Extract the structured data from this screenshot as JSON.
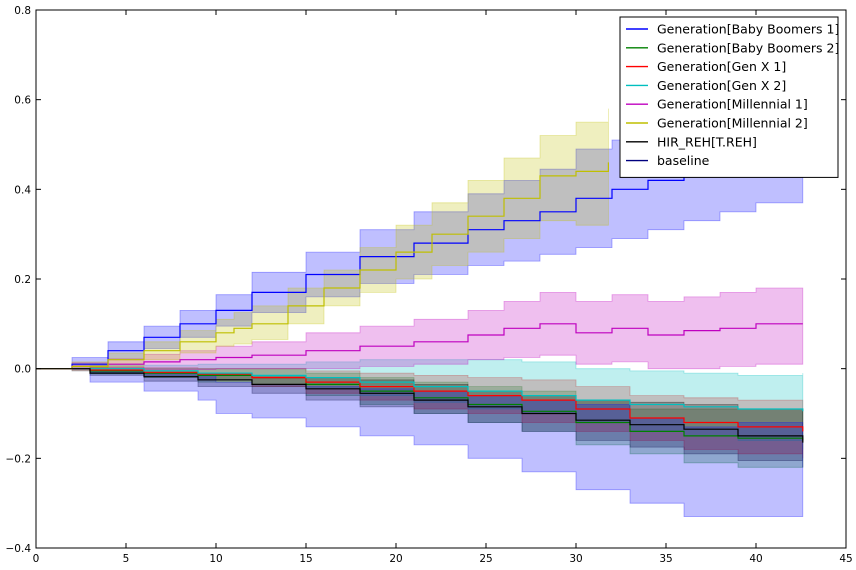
{
  "chart_data": {
    "type": "line",
    "title": "",
    "xlabel": "",
    "ylabel": "",
    "xlim": [
      0,
      45
    ],
    "ylim": [
      -0.4,
      0.8
    ],
    "xticks": [
      0,
      5,
      10,
      15,
      20,
      25,
      30,
      35,
      40,
      45
    ],
    "yticks": [
      -0.4,
      -0.2,
      0.0,
      0.2,
      0.4,
      0.6,
      0.8
    ],
    "xtick_labels": [
      "0",
      "5",
      "10",
      "15",
      "20",
      "25",
      "30",
      "35",
      "40",
      "45"
    ],
    "ytick_labels": [
      "−0.4",
      "−0.2",
      "0.0",
      "0.2",
      "0.4",
      "0.6",
      "0.8"
    ],
    "grid": false,
    "legend_position": "top-right",
    "series": [
      {
        "name": "Generation[Baby Boomers 1]",
        "color": "#0000ff",
        "x": [
          0,
          2,
          4,
          6,
          8,
          10,
          12,
          15,
          18,
          21,
          24,
          26,
          28,
          30,
          32,
          34,
          36,
          38,
          40,
          42.6
        ],
        "y": [
          0,
          0.01,
          0.04,
          0.07,
          0.1,
          0.13,
          0.17,
          0.21,
          0.25,
          0.28,
          0.31,
          0.33,
          0.35,
          0.38,
          0.4,
          0.42,
          0.44,
          0.45,
          0.46,
          0.48
        ],
        "lower": [
          0,
          -0.005,
          0.02,
          0.045,
          0.07,
          0.095,
          0.125,
          0.16,
          0.19,
          0.21,
          0.23,
          0.24,
          0.255,
          0.27,
          0.29,
          0.31,
          0.33,
          0.35,
          0.37,
          0.4
        ],
        "upper": [
          0,
          0.025,
          0.06,
          0.095,
          0.13,
          0.165,
          0.215,
          0.26,
          0.31,
          0.35,
          0.39,
          0.42,
          0.445,
          0.49,
          0.51,
          0.53,
          0.55,
          0.56,
          0.57,
          0.58
        ]
      },
      {
        "name": "Generation[Baby Boomers 2]",
        "color": "#008000",
        "x": [
          0,
          3,
          6,
          9,
          12,
          15,
          18,
          21,
          24,
          27,
          30,
          33,
          36,
          39,
          42.6
        ],
        "y": [
          0,
          -0.005,
          -0.01,
          -0.015,
          -0.02,
          -0.035,
          -0.05,
          -0.065,
          -0.08,
          -0.095,
          -0.12,
          -0.14,
          -0.15,
          -0.155,
          -0.16
        ],
        "lower": [
          0,
          -0.012,
          -0.02,
          -0.03,
          -0.04,
          -0.06,
          -0.08,
          -0.1,
          -0.12,
          -0.14,
          -0.17,
          -0.19,
          -0.21,
          -0.22,
          -0.22
        ],
        "upper": [
          0,
          0.002,
          0.0,
          0.0,
          0.0,
          -0.01,
          -0.02,
          -0.03,
          -0.04,
          -0.05,
          -0.07,
          -0.09,
          -0.09,
          -0.09,
          -0.1
        ]
      },
      {
        "name": "Generation[Gen X 1]",
        "color": "#ff0000",
        "x": [
          0,
          3,
          6,
          9,
          12,
          15,
          18,
          21,
          24,
          27,
          30,
          33,
          36,
          39,
          42.6
        ],
        "y": [
          0,
          -0.003,
          -0.008,
          -0.012,
          -0.02,
          -0.03,
          -0.04,
          -0.05,
          -0.06,
          -0.07,
          -0.09,
          -0.11,
          -0.12,
          -0.13,
          -0.14
        ],
        "lower": [
          0,
          -0.01,
          -0.018,
          -0.025,
          -0.04,
          -0.055,
          -0.07,
          -0.09,
          -0.1,
          -0.12,
          -0.14,
          -0.16,
          -0.18,
          -0.19,
          -0.2
        ],
        "upper": [
          0,
          0.004,
          0.002,
          0.0,
          0.0,
          -0.005,
          -0.01,
          -0.015,
          -0.02,
          -0.025,
          -0.04,
          -0.06,
          -0.065,
          -0.07,
          -0.08
        ]
      },
      {
        "name": "Generation[Gen X 2]",
        "color": "#00bfbf",
        "x": [
          0,
          3,
          6,
          9,
          12,
          15,
          18,
          21,
          24,
          27,
          30,
          33,
          36,
          39,
          42.6
        ],
        "y": [
          0,
          0.0,
          -0.005,
          -0.01,
          -0.015,
          -0.02,
          -0.03,
          -0.04,
          -0.05,
          -0.06,
          -0.07,
          -0.08,
          -0.085,
          -0.09,
          -0.095
        ],
        "lower": [
          0,
          -0.008,
          -0.015,
          -0.025,
          -0.035,
          -0.045,
          -0.06,
          -0.075,
          -0.09,
          -0.1,
          -0.12,
          -0.14,
          -0.15,
          -0.16,
          -0.18
        ],
        "upper": [
          0,
          0.008,
          0.008,
          0.01,
          0.01,
          0.015,
          0.02,
          0.02,
          0.02,
          0.015,
          0.0,
          -0.005,
          -0.01,
          -0.015,
          -0.01
        ]
      },
      {
        "name": "Generation[Millennial 1]",
        "color": "#bf00bf",
        "x": [
          0,
          2,
          4,
          6,
          8,
          10,
          12,
          15,
          18,
          21,
          24,
          26,
          28,
          30,
          32,
          34,
          36,
          38,
          40,
          42.6
        ],
        "y": [
          0,
          0.005,
          0.01,
          0.015,
          0.02,
          0.025,
          0.03,
          0.04,
          0.05,
          0.06,
          0.075,
          0.09,
          0.1,
          0.08,
          0.09,
          0.075,
          0.085,
          0.09,
          0.1,
          0.1
        ],
        "lower": [
          0,
          -0.003,
          -0.003,
          -0.003,
          -0.002,
          0.0,
          0.0,
          0.0,
          0.005,
          0.01,
          0.02,
          0.025,
          0.03,
          0.01,
          0.015,
          0.0,
          0.0,
          0.005,
          0.01,
          0.02
        ],
        "upper": [
          0,
          0.013,
          0.022,
          0.032,
          0.04,
          0.05,
          0.06,
          0.08,
          0.095,
          0.11,
          0.13,
          0.15,
          0.17,
          0.15,
          0.165,
          0.15,
          0.16,
          0.17,
          0.18,
          0.18
        ]
      },
      {
        "name": "Generation[Millennial 2]",
        "color": "#bfbf00",
        "x": [
          0,
          2,
          4,
          6,
          8,
          10,
          11,
          12,
          14,
          16,
          18,
          20,
          22,
          24,
          26,
          28,
          30,
          31.8
        ],
        "y": [
          0,
          0.005,
          0.02,
          0.04,
          0.06,
          0.08,
          0.09,
          0.1,
          0.14,
          0.18,
          0.22,
          0.26,
          0.3,
          0.34,
          0.38,
          0.43,
          0.44,
          0.46
        ],
        "lower": [
          0,
          -0.005,
          0.005,
          0.02,
          0.035,
          0.05,
          0.055,
          0.065,
          0.1,
          0.14,
          0.17,
          0.2,
          0.23,
          0.26,
          0.29,
          0.33,
          0.32,
          0.34
        ],
        "upper": [
          0,
          0.015,
          0.035,
          0.06,
          0.085,
          0.11,
          0.125,
          0.14,
          0.18,
          0.22,
          0.27,
          0.32,
          0.37,
          0.42,
          0.47,
          0.52,
          0.55,
          0.58
        ]
      },
      {
        "name": "HIR_REH[T.REH]",
        "color": "#000000",
        "x": [
          0,
          3,
          6,
          9,
          12,
          15,
          18,
          21,
          24,
          27,
          30,
          33,
          36,
          39,
          42.6
        ],
        "y": [
          0,
          -0.01,
          -0.018,
          -0.025,
          -0.035,
          -0.045,
          -0.055,
          -0.07,
          -0.085,
          -0.1,
          -0.115,
          -0.125,
          -0.135,
          -0.15,
          -0.165
        ],
        "lower": [
          0,
          -0.015,
          -0.028,
          -0.04,
          -0.055,
          -0.07,
          -0.085,
          -0.1,
          -0.12,
          -0.14,
          -0.16,
          -0.175,
          -0.19,
          -0.205,
          -0.22
        ],
        "upper": [
          0,
          -0.004,
          -0.008,
          -0.01,
          -0.015,
          -0.02,
          -0.025,
          -0.035,
          -0.05,
          -0.06,
          -0.07,
          -0.075,
          -0.08,
          -0.09,
          -0.1
        ]
      },
      {
        "name": "baseline",
        "color": "#00007f",
        "x": [],
        "y": []
      },
      {
        "name": "",
        "color": "#0000ff",
        "band_only": true,
        "x": [
          0,
          3,
          6,
          9,
          10,
          12,
          15,
          18,
          21,
          24,
          27,
          30,
          33,
          36,
          39,
          42.6
        ],
        "y": [
          0,
          -0.02,
          -0.03,
          -0.04,
          -0.06,
          -0.07,
          -0.08,
          -0.09,
          -0.1,
          -0.12,
          -0.14,
          -0.17,
          -0.2,
          -0.22,
          -0.21,
          -0.21
        ],
        "lower": [
          0,
          -0.03,
          -0.05,
          -0.07,
          -0.1,
          -0.11,
          -0.13,
          -0.15,
          -0.17,
          -0.2,
          -0.23,
          -0.27,
          -0.3,
          -0.33,
          -0.33,
          -0.33
        ],
        "upper": [
          0,
          -0.005,
          -0.01,
          -0.015,
          -0.03,
          -0.035,
          -0.04,
          -0.045,
          -0.05,
          -0.06,
          -0.07,
          -0.08,
          -0.11,
          -0.13,
          -0.12,
          -0.12
        ]
      }
    ]
  }
}
